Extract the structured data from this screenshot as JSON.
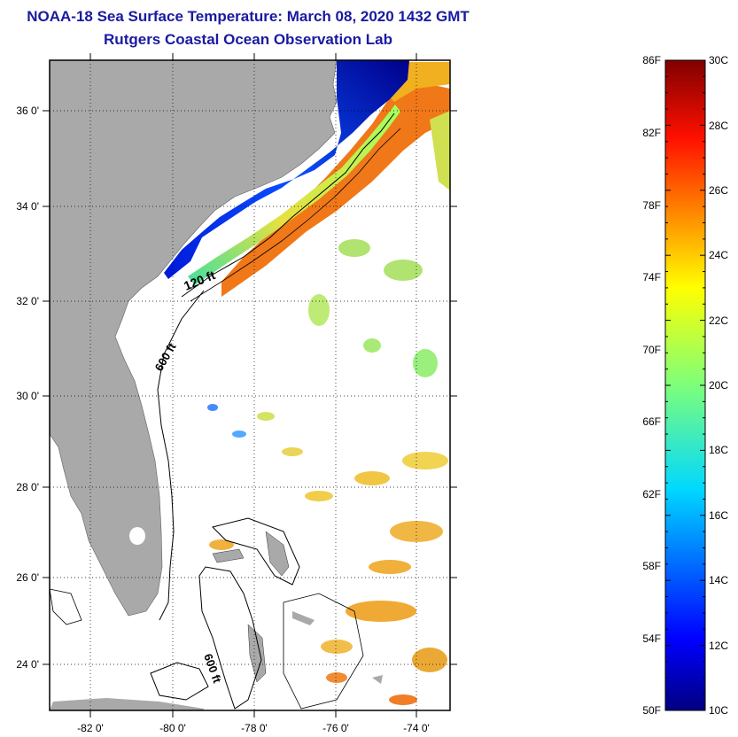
{
  "title": "NOAA-18 Sea Surface Temperature:  March 08, 2020 1432 GMT",
  "subtitle": "Rutgers Coastal Ocean Observation Lab",
  "map": {
    "lat_labels": [
      "36 0'",
      "34 0'",
      "32 0'",
      "30 0'",
      "28 0'",
      "26 0'",
      "24 0'"
    ],
    "lon_labels": [
      "-82 0'",
      "-80 0'",
      "-78 0'",
      "-76 0'",
      "-74 0'"
    ],
    "contours": [
      {
        "label": "120 ft"
      },
      {
        "label": "600 ft"
      },
      {
        "label": "600 ft"
      }
    ],
    "land_color": "#a9a9a9"
  },
  "colorbar": {
    "fahrenheit_labels": [
      "86F",
      "82F",
      "78F",
      "74F",
      "70F",
      "66F",
      "62F",
      "58F",
      "54F",
      "50F"
    ],
    "celsius_labels": [
      "30C",
      "28C",
      "26C",
      "24C",
      "22C",
      "20C",
      "18C",
      "16C",
      "14C",
      "12C",
      "10C"
    ],
    "range_c": [
      10,
      30
    ],
    "colormap": "jet"
  }
}
